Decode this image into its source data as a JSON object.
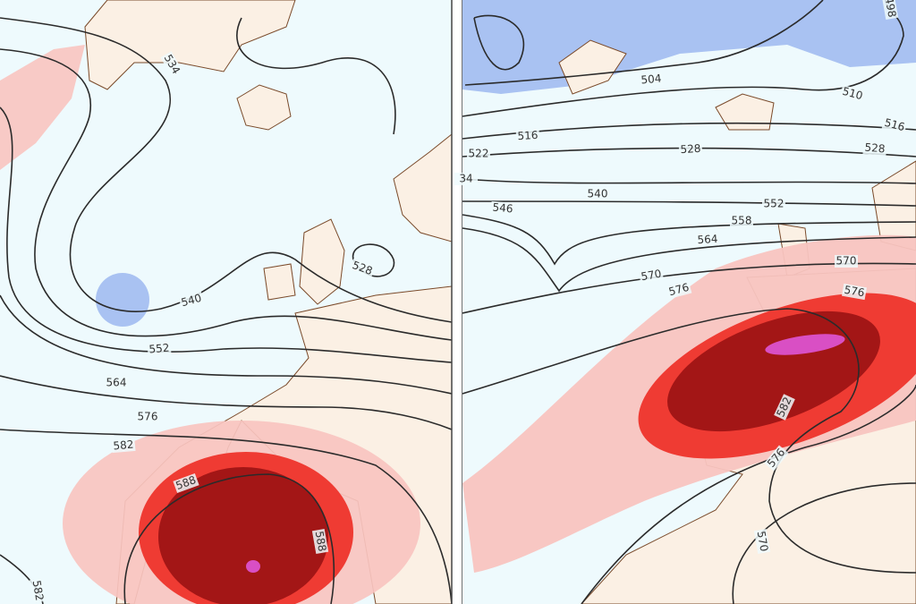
{
  "panels": [
    {
      "contour_labels": [
        "534",
        "528",
        "540",
        "552",
        "564",
        "576",
        "582",
        "588",
        "588",
        "582"
      ]
    },
    {
      "contour_labels": [
        "498",
        "504",
        "510",
        "516",
        "516",
        "522",
        "528",
        "528",
        "34",
        "540",
        "546",
        "552",
        "558",
        "564",
        "570",
        "570",
        "576",
        "576",
        "582",
        "576",
        "570"
      ]
    }
  ]
}
